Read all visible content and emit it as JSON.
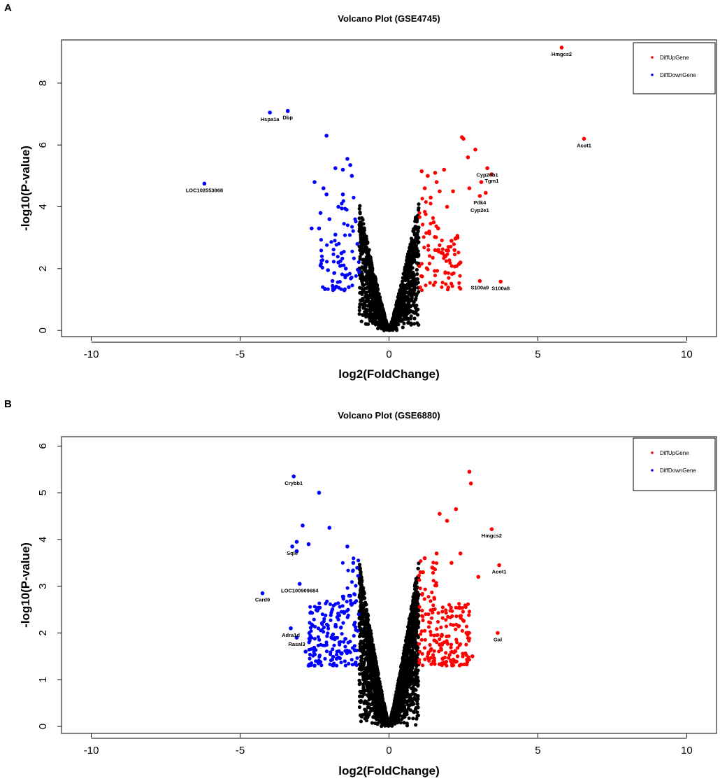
{
  "colors": {
    "up": "#ff0000",
    "down": "#0000ff",
    "nonsig": "#000000"
  },
  "chart_data": [
    {
      "panel_label": "A",
      "type": "scatter",
      "title": "Volcano Plot (GSE4745)",
      "xlabel": "log2(FoldChange)",
      "ylabel": "-log10(P-value)",
      "xlim": [
        -11,
        11
      ],
      "ylim": [
        -0.2,
        9.4
      ],
      "xticks": [
        -10,
        -5,
        0,
        5,
        10
      ],
      "yticks": [
        0,
        2,
        4,
        6,
        8
      ],
      "grid": false,
      "legend": {
        "position": "top-right",
        "entries": [
          "DiffUpGene",
          "DiffDownGene"
        ]
      },
      "background_points": {
        "approx_count": 1400,
        "x_range": [
          -1.0,
          1.0
        ],
        "y_max_at_edge": 4.1,
        "description_color": "nonsig"
      },
      "series": [
        {
          "name": "DiffUpGene",
          "color_key": "up",
          "points": [
            [
              5.8,
              9.15
            ],
            [
              6.55,
              6.2
            ],
            [
              2.45,
              6.25
            ],
            [
              2.5,
              6.2
            ],
            [
              2.9,
              5.85
            ],
            [
              2.65,
              5.6
            ],
            [
              3.3,
              5.25
            ],
            [
              3.45,
              5.05
            ],
            [
              3.1,
              4.8
            ],
            [
              3.25,
              4.45
            ],
            [
              3.05,
              4.35
            ],
            [
              3.05,
              1.6
            ],
            [
              3.75,
              1.58
            ],
            [
              1.1,
              5.15
            ],
            [
              1.3,
              5.0
            ],
            [
              1.55,
              5.1
            ],
            [
              1.85,
              5.2
            ],
            [
              2.15,
              4.5
            ],
            [
              2.7,
              4.6
            ],
            [
              1.6,
              4.8
            ],
            [
              1.4,
              4.3
            ],
            [
              1.95,
              4.0
            ],
            [
              1.2,
              4.6
            ],
            [
              1.7,
              4.5
            ],
            [
              2.3,
              3.0
            ],
            [
              2.1,
              2.9
            ],
            [
              2.4,
              2.2
            ],
            [
              2.35,
              2.15
            ],
            [
              2.0,
              2.7
            ],
            [
              2.2,
              2.6
            ],
            [
              1.8,
              2.5
            ],
            [
              1.55,
              2.6
            ],
            [
              1.9,
              2.4
            ],
            [
              1.65,
              3.3
            ],
            [
              1.5,
              3.5
            ],
            [
              1.35,
              3.2
            ]
          ],
          "scatter_cloud": {
            "count": 80,
            "x_range": [
              1.0,
              2.4
            ],
            "y_range": [
              1.3,
              4.3
            ]
          },
          "labels": [
            {
              "text": "Hmgcs2",
              "x": 5.8,
              "y": 9.15,
              "pos": "below"
            },
            {
              "text": "Acot1",
              "x": 6.55,
              "y": 6.2,
              "pos": "below"
            },
            {
              "text": "Cyp26b1",
              "x": 3.3,
              "y": 5.25,
              "pos": "below"
            },
            {
              "text": "Tgm1",
              "x": 3.45,
              "y": 5.05,
              "pos": "below"
            },
            {
              "text": "Pdk4",
              "x": 3.05,
              "y": 4.35,
              "pos": "below"
            },
            {
              "text": "Cyp2e1",
              "x": 3.05,
              "y": 4.1,
              "pos": "below"
            },
            {
              "text": "S100a9",
              "x": 3.05,
              "y": 1.6,
              "pos": "below"
            },
            {
              "text": "S100a8",
              "x": 3.75,
              "y": 1.58,
              "pos": "below"
            }
          ]
        },
        {
          "name": "DiffDownGene",
          "color_key": "down",
          "points": [
            [
              -3.4,
              7.1
            ],
            [
              -4.0,
              7.05
            ],
            [
              -6.2,
              4.75
            ],
            [
              -2.1,
              6.3
            ],
            [
              -1.4,
              5.55
            ],
            [
              -1.3,
              5.35
            ],
            [
              -1.55,
              5.2
            ],
            [
              -1.8,
              5.25
            ],
            [
              -1.25,
              5.0
            ],
            [
              -2.5,
              4.8
            ],
            [
              -2.2,
              4.6
            ],
            [
              -2.35,
              3.3
            ],
            [
              -2.6,
              3.3
            ],
            [
              -2.3,
              2.1
            ],
            [
              -2.05,
              1.95
            ],
            [
              -1.9,
              1.6
            ],
            [
              -2.0,
              3.6
            ],
            [
              -2.3,
              3.8
            ],
            [
              -1.7,
              4.0
            ],
            [
              -1.55,
              4.4
            ],
            [
              -2.1,
              4.4
            ],
            [
              -1.8,
              3.1
            ],
            [
              -1.6,
              2.5
            ],
            [
              -1.7,
              2.2
            ],
            [
              -1.45,
              2.0
            ],
            [
              -1.35,
              1.4
            ],
            [
              -1.5,
              1.3
            ]
          ],
          "scatter_cloud": {
            "count": 70,
            "x_range": [
              -2.3,
              -1.0
            ],
            "y_range": [
              1.3,
              4.3
            ]
          },
          "labels": [
            {
              "text": "Hspa1a",
              "x": -4.0,
              "y": 7.05,
              "pos": "below"
            },
            {
              "text": "Dbp",
              "x": -3.4,
              "y": 7.1,
              "pos": "below"
            },
            {
              "text": "LOC102553868",
              "x": -6.2,
              "y": 4.75,
              "pos": "below"
            }
          ]
        }
      ]
    },
    {
      "panel_label": "B",
      "type": "scatter",
      "title": "Volcano Plot (GSE6880)",
      "xlabel": "log2(FoldChange)",
      "ylabel": "-log10(P-value)",
      "xlim": [
        -11,
        11
      ],
      "ylim": [
        -0.15,
        6.2
      ],
      "xticks": [
        -10,
        -5,
        0,
        5,
        10
      ],
      "yticks": [
        0,
        1,
        2,
        3,
        4,
        5,
        6
      ],
      "grid": false,
      "legend": {
        "position": "top-right",
        "entries": [
          "DiffUpGene",
          "DiffDownGene"
        ]
      },
      "background_points": {
        "approx_count": 2200,
        "x_range": [
          -1.0,
          1.0
        ],
        "y_max_at_edge": 3.5,
        "description_color": "nonsig"
      },
      "series": [
        {
          "name": "DiffUpGene",
          "color_key": "up",
          "points": [
            [
              2.7,
              5.45
            ],
            [
              2.75,
              5.2
            ],
            [
              2.25,
              4.65
            ],
            [
              1.7,
              4.55
            ],
            [
              1.95,
              4.4
            ],
            [
              3.45,
              4.22
            ],
            [
              3.7,
              3.45
            ],
            [
              3.0,
              3.2
            ],
            [
              3.65,
              2.0
            ],
            [
              2.4,
              3.7
            ],
            [
              1.6,
              3.7
            ],
            [
              1.2,
              3.6
            ],
            [
              1.45,
              3.4
            ],
            [
              2.1,
              3.5
            ],
            [
              2.6,
              2.0
            ],
            [
              2.8,
              1.5
            ],
            [
              2.2,
              1.4
            ],
            [
              1.8,
              1.45
            ]
          ],
          "scatter_cloud": {
            "count": 200,
            "x_range": [
              1.0,
              2.7
            ],
            "y_range": [
              1.3,
              3.6
            ]
          },
          "labels": [
            {
              "text": "Hmgcs2",
              "x": 3.45,
              "y": 4.22,
              "pos": "below"
            },
            {
              "text": "Acot1",
              "x": 3.7,
              "y": 3.45,
              "pos": "below"
            },
            {
              "text": "Gal",
              "x": 3.65,
              "y": 2.0,
              "pos": "below"
            }
          ]
        },
        {
          "name": "DiffDownGene",
          "color_key": "down",
          "points": [
            [
              -3.2,
              5.35
            ],
            [
              -2.35,
              5.0
            ],
            [
              -2.9,
              4.3
            ],
            [
              -2.0,
              4.25
            ],
            [
              -3.1,
              3.95
            ],
            [
              -3.25,
              3.85
            ],
            [
              -3.1,
              3.75
            ],
            [
              -2.7,
              3.9
            ],
            [
              -3.0,
              3.05
            ],
            [
              -4.25,
              2.85
            ],
            [
              -3.3,
              2.1
            ],
            [
              -3.1,
              1.9
            ],
            [
              -2.8,
              1.6
            ],
            [
              -2.7,
              1.3
            ],
            [
              -2.5,
              1.3
            ],
            [
              -1.4,
              3.85
            ],
            [
              -1.2,
              3.5
            ]
          ],
          "scatter_cloud": {
            "count": 200,
            "x_range": [
              -2.7,
              -1.0
            ],
            "y_range": [
              1.3,
              3.6
            ]
          },
          "labels": [
            {
              "text": "Crybb1",
              "x": -3.2,
              "y": 5.35,
              "pos": "below"
            },
            {
              "text": "Sqle",
              "x": -3.25,
              "y": 3.85,
              "pos": "below"
            },
            {
              "text": "LOC100909684",
              "x": -3.0,
              "y": 3.05,
              "pos": "below"
            },
            {
              "text": "Card9",
              "x": -4.25,
              "y": 2.85,
              "pos": "below"
            },
            {
              "text": "Adra1d",
              "x": -3.3,
              "y": 2.1,
              "pos": "below"
            },
            {
              "text": "Rasal3",
              "x": -3.1,
              "y": 1.9,
              "pos": "below"
            }
          ]
        }
      ]
    }
  ]
}
